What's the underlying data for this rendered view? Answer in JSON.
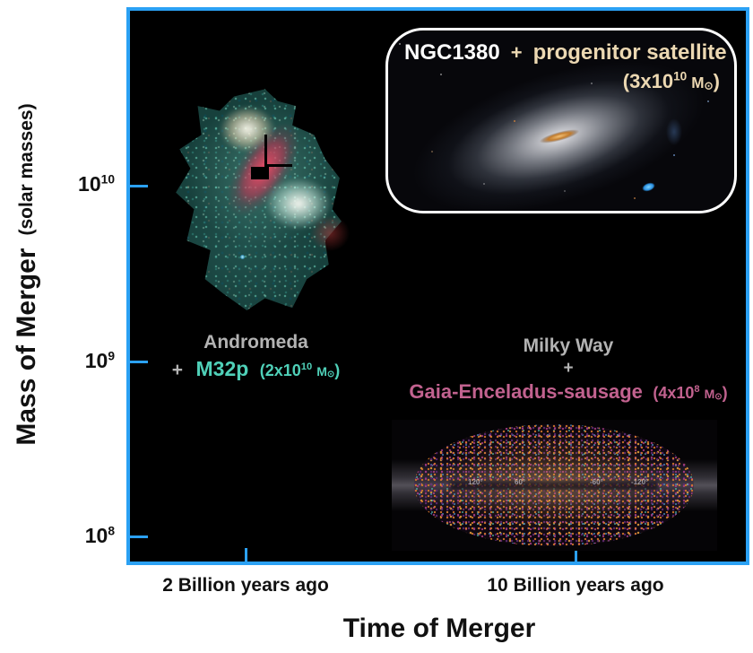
{
  "figure": {
    "x_axis": {
      "title": "Time of Merger",
      "tick_labels": [
        "2 Billion years ago",
        "10 Billion years ago"
      ]
    },
    "y_axis": {
      "title": "Mass of Merger",
      "title_sub": "(solar masses)",
      "ticks": [
        {
          "base": "10",
          "exp": "10"
        },
        {
          "base": "10",
          "exp": "9"
        },
        {
          "base": "10",
          "exp": "8"
        }
      ]
    }
  },
  "mergers": {
    "ngc1380": {
      "host": "NGC1380",
      "plus": "+",
      "satellite": "progenitor satellite",
      "mass": {
        "open": "(3x10",
        "exp": "10",
        "unit": "M",
        "sun": "⊙",
        "close": ")"
      }
    },
    "andromeda": {
      "host": "Andromeda",
      "plus": "+",
      "satellite": "M32p",
      "mass": {
        "open": "(2x10",
        "exp": "10",
        "unit": "M",
        "sun": "⊙",
        "close": ")"
      }
    },
    "milkyway": {
      "host": "Milky Way",
      "plus": "+",
      "satellite": "Gaia-Enceladus-sausage",
      "mass": {
        "open": "(4x10",
        "exp": "8",
        "unit": "M",
        "sun": "⊙",
        "close": ")"
      }
    }
  },
  "mw_map": {
    "longitude_labels": [
      "120°",
      "60°",
      "-60°",
      "-120°"
    ]
  },
  "colors": {
    "plot_border": "#2ba1f4",
    "teal": "#4fd0b8",
    "pink": "#c2628f",
    "cream": "#ecd8b2",
    "gray": "#b3b3b3",
    "plot_background": "#000000"
  },
  "chart_data": {
    "type": "scatter",
    "title": "",
    "xlabel": "Time of Merger",
    "ylabel": "Mass of Merger (solar masses)",
    "y_scale": "log",
    "x_tick_labels": [
      "2 Billion years ago",
      "10 Billion years ago"
    ],
    "y_tick_labels": [
      "10^10",
      "10^9",
      "10^8"
    ],
    "ylim": [
      "10^8",
      "~6x10^10"
    ],
    "grid": false,
    "legend": "none",
    "points": [
      {
        "host": "Andromeda",
        "satellite": "M32p",
        "time": "2 Billion years ago",
        "mass_solar": 20000000000.0,
        "mass_label": "2x10^10 M⊙",
        "marker": "HST mosaic galaxy image with black crosshair"
      },
      {
        "host": "Milky Way",
        "satellite": "Gaia-Enceladus-sausage",
        "time": "10 Billion years ago",
        "mass_solar": 400000000.0,
        "mass_label": "4x10^8 M⊙",
        "marker": "Gaia all-sky speckled ellipse map"
      },
      {
        "host": "NGC1380",
        "satellite": "progenitor satellite",
        "time": "",
        "mass_solar": 30000000000.0,
        "mass_label": "3x10^10 M⊙",
        "marker": "lenticular galaxy photo in white rounded box, upper right"
      }
    ]
  }
}
